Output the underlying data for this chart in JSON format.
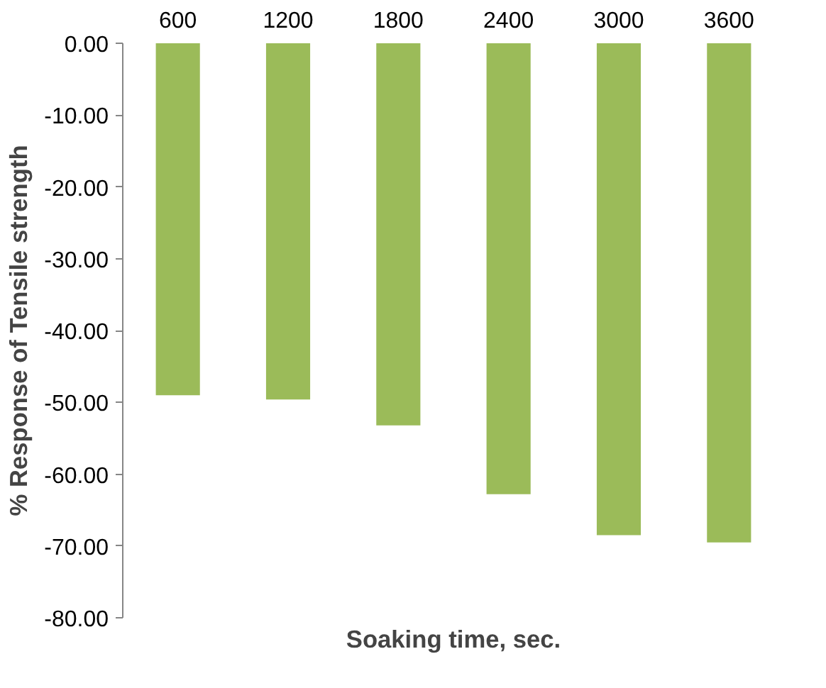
{
  "chart_data": {
    "type": "bar",
    "xlabel": "Soaking time, sec.",
    "ylabel": "% Response of Tensile strength",
    "categories": [
      "600",
      "1200",
      "1800",
      "2400",
      "3000",
      "3600"
    ],
    "values": [
      -49.0,
      -49.6,
      -53.2,
      -62.8,
      -68.5,
      -69.5
    ],
    "color": "#9bbb59",
    "ylim": [
      -80,
      0
    ],
    "yticks": [
      {
        "value": 0,
        "label": "0.00"
      },
      {
        "value": -10,
        "label": "-10.00"
      },
      {
        "value": -20,
        "label": "-20.00"
      },
      {
        "value": -30,
        "label": "-30.00"
      },
      {
        "value": -40,
        "label": "-40.00"
      },
      {
        "value": -50,
        "label": "-50.00"
      },
      {
        "value": -60,
        "label": "-60.00"
      },
      {
        "value": -70,
        "label": "-70.00"
      },
      {
        "value": -80,
        "label": "-80.00"
      }
    ],
    "grid": false
  }
}
